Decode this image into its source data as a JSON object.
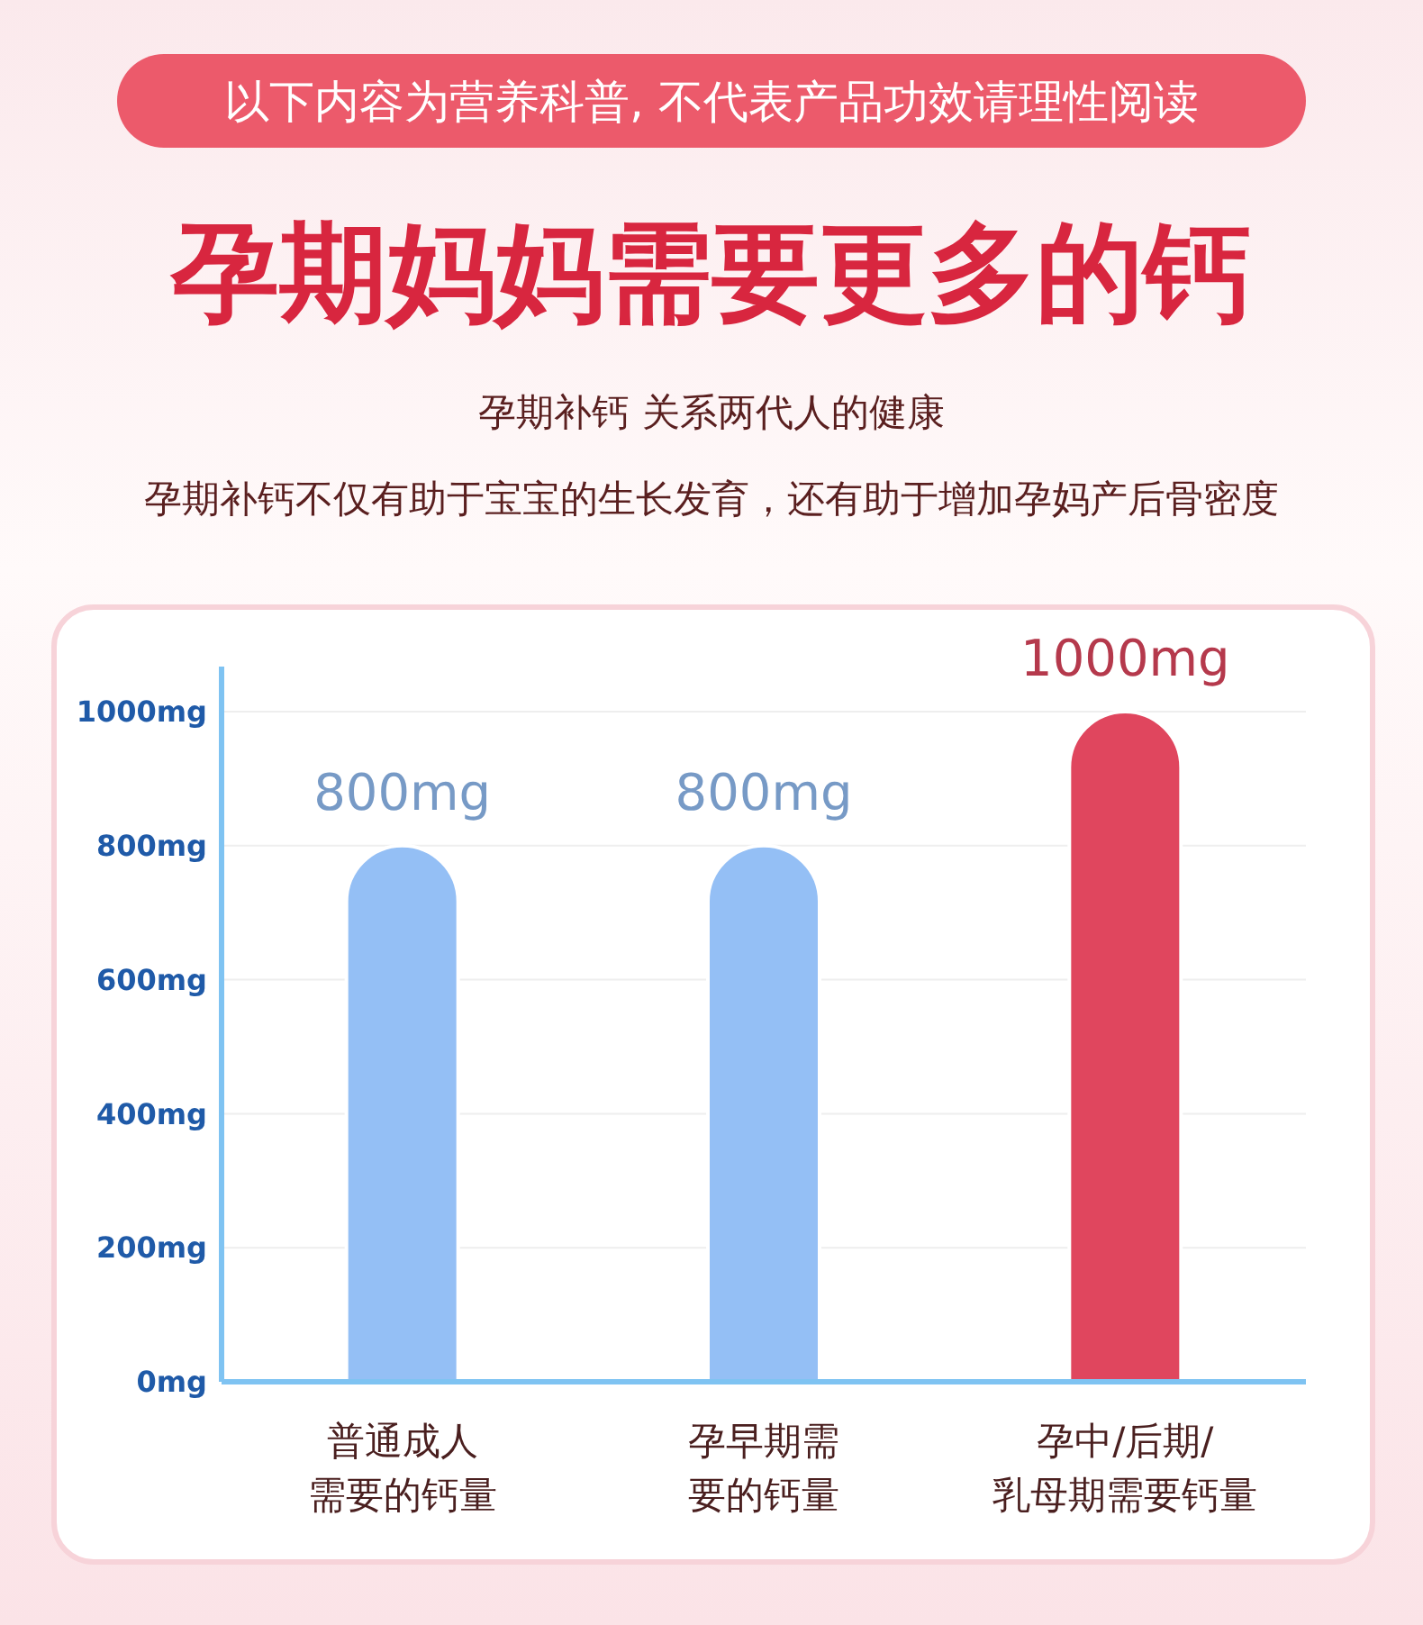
{
  "chart_data": {
    "type": "bar",
    "title": "孕期妈妈需要更多的钙",
    "subtitle": "孕期补钙 关系两代人的健康",
    "annotations": [
      "以下内容为营养科普, 不代表产品功效请理性阅读",
      "孕期补钙不仅有助于宝宝的生长发育，还有助于增加孕妈产后骨密度"
    ],
    "categories": [
      "普通成人需要的钙量",
      "孕早期需要的钙量",
      "孕中/后期/乳母期需要钙量"
    ],
    "values": [
      800,
      800,
      1000
    ],
    "colors": [
      "#94bff5",
      "#94bff5",
      "#e0465e"
    ],
    "value_labels": [
      "800mg",
      "800mg",
      "1000mg"
    ],
    "ylim": [
      0,
      1000
    ],
    "yticks": [
      {
        "value": 0,
        "label": "0mg"
      },
      {
        "value": 200,
        "label": "200mg"
      },
      {
        "value": 400,
        "label": "400mg"
      },
      {
        "value": 600,
        "label": "600mg"
      },
      {
        "value": 800,
        "label": "800mg"
      },
      {
        "value": 1000,
        "label": "1000mg"
      }
    ],
    "grid": true
  }
}
